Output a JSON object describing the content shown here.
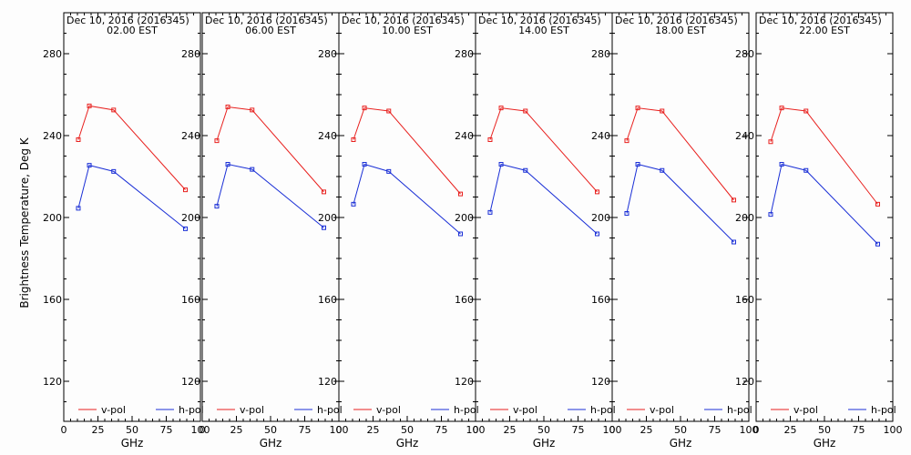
{
  "figure": {
    "ylabel": "Brightness Temperature, Deg K",
    "xlabel": "GHz"
  },
  "chart_data": [
    {
      "type": "line",
      "title": "Dec 10, 2016 (2016345)",
      "subtitle": "02.00 EST",
      "xlabel": "GHz",
      "ylabel": "Brightness Temperature, Deg K",
      "xlim": [
        0,
        100
      ],
      "ylim": [
        100,
        295
      ],
      "xticks": [
        "0",
        "25",
        "50",
        "75",
        "100"
      ],
      "yticks": [
        "120",
        "160",
        "200",
        "240",
        "280"
      ],
      "x": [
        10.65,
        18.7,
        36.5,
        89.0
      ],
      "series": [
        {
          "name": "v-pol",
          "color": "#e8201e",
          "values": [
            238,
            254.5,
            252.5,
            213.5
          ]
        },
        {
          "name": "h-pol",
          "color": "#1a2fd6",
          "values": [
            204.5,
            225.5,
            222.5,
            194.5
          ]
        }
      ],
      "legend": "bottom",
      "grid": false
    },
    {
      "type": "line",
      "title": "Dec 10, 2016 (2016345)",
      "subtitle": "06.00 EST",
      "xlabel": "GHz",
      "ylabel": "Brightness Temperature, Deg K",
      "xlim": [
        0,
        100
      ],
      "ylim": [
        100,
        295
      ],
      "xticks": [
        "0",
        "25",
        "50",
        "75",
        "100"
      ],
      "yticks": [
        "120",
        "160",
        "200",
        "240",
        "280"
      ],
      "x": [
        10.65,
        18.7,
        36.5,
        89.0
      ],
      "series": [
        {
          "name": "v-pol",
          "color": "#e8201e",
          "values": [
            237.5,
            254,
            252.5,
            212.5
          ]
        },
        {
          "name": "h-pol",
          "color": "#1a2fd6",
          "values": [
            205.5,
            226,
            223.5,
            195
          ]
        }
      ],
      "legend": "bottom",
      "grid": false
    },
    {
      "type": "line",
      "title": "Dec 10, 2016 (2016345)",
      "subtitle": "10.00 EST",
      "xlabel": "GHz",
      "ylabel": "Brightness Temperature, Deg K",
      "xlim": [
        0,
        100
      ],
      "ylim": [
        100,
        295
      ],
      "xticks": [
        "0",
        "25",
        "50",
        "75",
        "100"
      ],
      "yticks": [
        "120",
        "160",
        "200",
        "240",
        "280"
      ],
      "x": [
        10.65,
        18.7,
        36.5,
        89.0
      ],
      "series": [
        {
          "name": "v-pol",
          "color": "#e8201e",
          "values": [
            238,
            253.5,
            252,
            211.5
          ]
        },
        {
          "name": "h-pol",
          "color": "#1a2fd6",
          "values": [
            206.5,
            226,
            222.5,
            192
          ]
        }
      ],
      "legend": "bottom",
      "grid": false
    },
    {
      "type": "line",
      "title": "Dec 10, 2016 (2016345)",
      "subtitle": "14.00 EST",
      "xlabel": "GHz",
      "ylabel": "Brightness Temperature, Deg K",
      "xlim": [
        0,
        100
      ],
      "ylim": [
        100,
        295
      ],
      "xticks": [
        "0",
        "25",
        "50",
        "75",
        "100"
      ],
      "yticks": [
        "120",
        "160",
        "200",
        "240",
        "280"
      ],
      "x": [
        10.65,
        18.7,
        36.5,
        89.0
      ],
      "series": [
        {
          "name": "v-pol",
          "color": "#e8201e",
          "values": [
            238,
            253.5,
            252,
            212.5
          ]
        },
        {
          "name": "h-pol",
          "color": "#1a2fd6",
          "values": [
            202.5,
            226,
            223,
            192
          ]
        }
      ],
      "legend": "bottom",
      "grid": false
    },
    {
      "type": "line",
      "title": "Dec 10, 2016 (2016345)",
      "subtitle": "18.00 EST",
      "xlabel": "GHz",
      "ylabel": "Brightness Temperature, Deg K",
      "xlim": [
        0,
        100
      ],
      "ylim": [
        100,
        295
      ],
      "xticks": [
        "0",
        "25",
        "50",
        "75",
        "100"
      ],
      "yticks": [
        "120",
        "160",
        "200",
        "240",
        "280"
      ],
      "x": [
        10.65,
        18.7,
        36.5,
        89.0
      ],
      "series": [
        {
          "name": "v-pol",
          "color": "#e8201e",
          "values": [
            237.5,
            253.5,
            252,
            208.5
          ]
        },
        {
          "name": "h-pol",
          "color": "#1a2fd6",
          "values": [
            202,
            226,
            223,
            188
          ]
        }
      ],
      "legend": "bottom",
      "grid": false
    },
    {
      "type": "line",
      "title": "Dec 10, 2016 (2016345)",
      "subtitle": "22.00 EST",
      "xlabel": "GHz",
      "ylabel": "Brightness Temperature, Deg K",
      "xlim": [
        0,
        100
      ],
      "ylim": [
        100,
        295
      ],
      "xticks": [
        "0",
        "25",
        "50",
        "75",
        "100"
      ],
      "yticks": [
        "120",
        "160",
        "200",
        "240",
        "280"
      ],
      "x": [
        10.65,
        18.7,
        36.5,
        89.0
      ],
      "series": [
        {
          "name": "v-pol",
          "color": "#e8201e",
          "values": [
            237,
            253.5,
            252,
            206.5
          ]
        },
        {
          "name": "h-pol",
          "color": "#1a2fd6",
          "values": [
            201.5,
            226,
            223,
            187
          ]
        }
      ],
      "legend": "bottom",
      "grid": false
    }
  ]
}
